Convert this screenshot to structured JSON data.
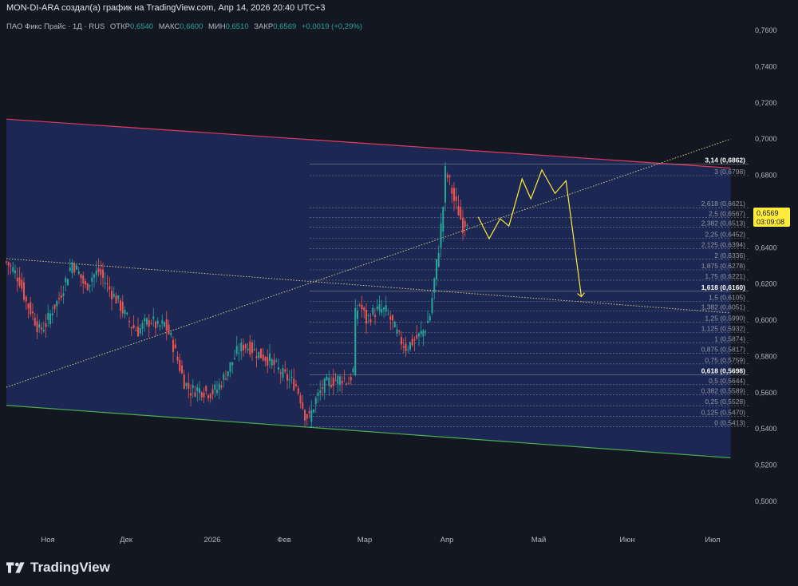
{
  "header": {
    "attribution": "MON-DI-ARA создал(а) график на TradingView.com, Апр 14, 2026 20:40 UTC+3"
  },
  "legend": {
    "symbol": "ПАО Фикс Прайс · 1Д · RUS",
    "open_label": "ОТКР",
    "open_value": "0,6540",
    "high_label": "МАКС",
    "high_value": "0,6600",
    "low_label": "МИН",
    "low_value": "0,6510",
    "close_label": "ЗАКР",
    "close_value": "0,6569",
    "change": "+0,0019 (+0,29%)"
  },
  "brand": {
    "name": "TradingView"
  },
  "colors": {
    "background": "#131722",
    "channel_fill": "#1f2b5c",
    "up": "#26a69a",
    "down": "#ef5350",
    "channel_top": "#e5395a",
    "channel_bottom": "#4caf50",
    "projection": "#ffeb3b",
    "price_tag": "#ffeb3b"
  },
  "chart_data": {
    "type": "candlestick",
    "symbol": "ПАО Фикс Прайс",
    "interval": "1Д",
    "x_ticks": [
      "Ноя",
      "Дек",
      "2026",
      "Фев",
      "Мар",
      "Апр",
      "Май",
      "Июн",
      "Июл"
    ],
    "y_ticks": [
      "0,5000",
      "0,5200",
      "0,5400",
      "0,5600",
      "0,5800",
      "0,6000",
      "0,6200",
      "0,6400",
      "0,6600",
      "0,6800",
      "0,7000",
      "0,7200",
      "0,7400",
      "0,7600"
    ],
    "ylim": [
      0.495,
      0.765
    ],
    "last_price": {
      "value": "0,6569",
      "countdown": "03:09:08"
    },
    "fib_levels": [
      {
        "label": "3,14 (0,6862)",
        "value": 0.6862,
        "bold": true
      },
      {
        "label": "3 (0,6798)",
        "value": 0.6798
      },
      {
        "label": "2,618 (0,6621)",
        "value": 0.6621
      },
      {
        "label": "2,5 (0,6567)",
        "value": 0.6567
      },
      {
        "label": "2,382 (0,6513)",
        "value": 0.6513
      },
      {
        "label": "2,25 (0,6452)",
        "value": 0.6452
      },
      {
        "label": "2,125 (0,6394)",
        "value": 0.6394
      },
      {
        "label": "2 (0,6336)",
        "value": 0.6336
      },
      {
        "label": "1,875 (0,6278)",
        "value": 0.6278
      },
      {
        "label": "1,75 (0,6221)",
        "value": 0.6221
      },
      {
        "label": "1,618 (0,6160)",
        "value": 0.616,
        "bold": true
      },
      {
        "label": "1,5 (0,6105)",
        "value": 0.6105
      },
      {
        "label": "1,382 (0,6051)",
        "value": 0.6051
      },
      {
        "label": "1,25 (0,5990)",
        "value": 0.599
      },
      {
        "label": "1,125 (0,5932)",
        "value": 0.5932
      },
      {
        "label": "1 (0,5874)",
        "value": 0.5874
      },
      {
        "label": "0,875 (0,5817)",
        "value": 0.5817
      },
      {
        "label": "0,75 (0,5759)",
        "value": 0.5759
      },
      {
        "label": "0,618 (0,5698)",
        "value": 0.5698,
        "bold": true
      },
      {
        "label": "0,5 (0,5644)",
        "value": 0.5644
      },
      {
        "label": "0,382 (0,5589)",
        "value": 0.5589
      },
      {
        "label": "0,25 (0,5528)",
        "value": 0.5528
      },
      {
        "label": "0,125 (0,5470)",
        "value": 0.547
      },
      {
        "label": "0 (0,5413)",
        "value": 0.5413
      }
    ],
    "close_path": [
      [
        0,
        0.632
      ],
      [
        3,
        0.628
      ],
      [
        6,
        0.622
      ],
      [
        9,
        0.61
      ],
      [
        12,
        0.603
      ],
      [
        15,
        0.594
      ],
      [
        18,
        0.598
      ],
      [
        21,
        0.606
      ],
      [
        24,
        0.612
      ],
      [
        27,
        0.622
      ],
      [
        30,
        0.632
      ],
      [
        33,
        0.626
      ],
      [
        36,
        0.618
      ],
      [
        39,
        0.624
      ],
      [
        42,
        0.627
      ],
      [
        45,
        0.621
      ],
      [
        48,
        0.615
      ],
      [
        51,
        0.61
      ],
      [
        54,
        0.603
      ],
      [
        57,
        0.597
      ],
      [
        60,
        0.594
      ],
      [
        63,
        0.598
      ],
      [
        66,
        0.6
      ],
      [
        69,
        0.596
      ],
      [
        72,
        0.598
      ],
      [
        75,
        0.59
      ],
      [
        78,
        0.578
      ],
      [
        81,
        0.566
      ],
      [
        84,
        0.561
      ],
      [
        87,
        0.562
      ],
      [
        90,
        0.561
      ],
      [
        93,
        0.56
      ],
      [
        96,
        0.562
      ],
      [
        99,
        0.568
      ],
      [
        102,
        0.575
      ],
      [
        105,
        0.582
      ],
      [
        108,
        0.586
      ],
      [
        111,
        0.585
      ],
      [
        114,
        0.582
      ],
      [
        117,
        0.58
      ],
      [
        120,
        0.578
      ],
      [
        123,
        0.574
      ],
      [
        126,
        0.57
      ],
      [
        129,
        0.567
      ],
      [
        132,
        0.564
      ],
      [
        134,
        0.557
      ],
      [
        136,
        0.548
      ],
      [
        138,
        0.546
      ],
      [
        141,
        0.556
      ],
      [
        144,
        0.563
      ],
      [
        147,
        0.566
      ],
      [
        150,
        0.567
      ],
      [
        153,
        0.568
      ],
      [
        156,
        0.566
      ],
      [
        158,
        0.572
      ],
      [
        159,
        0.603
      ],
      [
        161,
        0.609
      ],
      [
        164,
        0.6
      ],
      [
        167,
        0.604
      ],
      [
        170,
        0.606
      ],
      [
        173,
        0.605
      ],
      [
        176,
        0.598
      ],
      [
        179,
        0.59
      ],
      [
        182,
        0.585
      ],
      [
        185,
        0.588
      ],
      [
        188,
        0.591
      ],
      [
        191,
        0.596
      ],
      [
        193,
        0.603
      ],
      [
        195,
        0.622
      ],
      [
        197,
        0.64
      ],
      [
        199,
        0.663
      ],
      [
        200,
        0.682
      ],
      [
        202,
        0.676
      ],
      [
        204,
        0.666
      ],
      [
        206,
        0.66
      ],
      [
        208,
        0.652
      ],
      [
        210,
        0.656
      ]
    ],
    "channel": {
      "top": [
        [
          0,
          0.711
        ],
        [
          330,
          0.684
        ]
      ],
      "bottom": [
        [
          0,
          0.553
        ],
        [
          330,
          0.524
        ]
      ]
    },
    "trendlines": [
      {
        "style": "dotted",
        "points": [
          [
            0,
            0.563
          ],
          [
            330,
            0.7
          ]
        ]
      },
      {
        "style": "dotted",
        "points": [
          [
            0,
            0.634
          ],
          [
            330,
            0.604
          ]
        ]
      }
    ],
    "projection": [
      [
        215,
        0.657
      ],
      [
        220,
        0.645
      ],
      [
        225,
        0.656
      ],
      [
        229,
        0.652
      ],
      [
        235,
        0.678
      ],
      [
        239,
        0.667
      ],
      [
        244,
        0.683
      ],
      [
        250,
        0.67
      ],
      [
        255,
        0.677
      ],
      [
        262,
        0.613
      ]
    ]
  }
}
